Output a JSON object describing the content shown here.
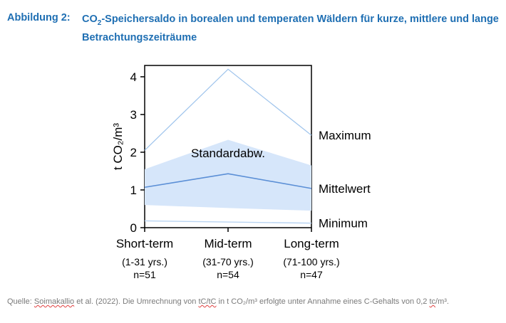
{
  "figure": {
    "label": "Abbildung 2:",
    "title_pre": "CO",
    "title_sub": "2",
    "title_post": "-Speichersaldo in borealen und temperaten Wäldern für kurze, mittlere und lange Betrachtungszeiträume"
  },
  "source": {
    "prefix": "Quelle: ",
    "author": "Soimakallio",
    "middle": " et al. (2022). Die Umrechnung von ",
    "unit1": "tC/tC",
    "middle2": " in t CO₂/m³ erfolgte unter Annahme eines C-Gehalts von 0,2 ",
    "unit2": "tc",
    "suffix": "/m³."
  },
  "colors": {
    "title": "#1f6fb3",
    "band": "#d6e6fa",
    "mean_line": "#5b8fd6",
    "max_line": "#9fc4ec",
    "min_line": "#b9d4f2"
  },
  "chart_data": {
    "type": "line",
    "categories": [
      "Short-term",
      "Mid-term",
      "Long-term"
    ],
    "category_details": [
      "(1-31 yrs.)",
      "(31-70 yrs.)",
      "(71-100 yrs.)"
    ],
    "category_n": [
      "n=51",
      "n=54",
      "n=47"
    ],
    "ylabel": "t CO₂/m³",
    "ylim": [
      0,
      4.3
    ],
    "yticks": [
      0,
      1,
      2,
      3,
      4
    ],
    "series": [
      {
        "name": "Maximum",
        "values": [
          2.05,
          4.2,
          2.45
        ]
      },
      {
        "name": "Mittelwert",
        "values": [
          1.07,
          1.43,
          1.04
        ]
      },
      {
        "name": "Minimum",
        "values": [
          0.18,
          0.15,
          0.12
        ]
      }
    ],
    "band": {
      "name": "Standardabw.",
      "upper": [
        1.55,
        2.33,
        1.65
      ],
      "lower": [
        0.6,
        0.52,
        0.45
      ]
    },
    "annotation": "Standardabw."
  }
}
